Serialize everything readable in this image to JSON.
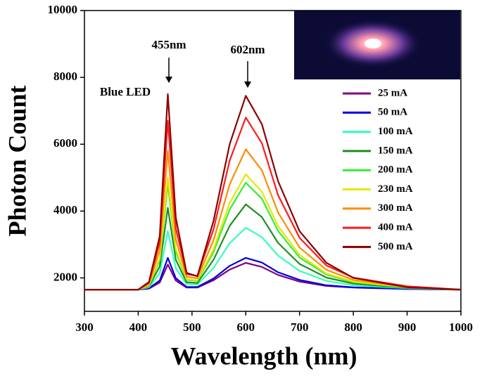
{
  "chart_data": {
    "type": "line",
    "y_label": "Photon Count",
    "x_label": "Wavelength (nm)",
    "annotations": [
      "455nm",
      "602nm",
      "Blue LED"
    ],
    "x": [
      300,
      400,
      420,
      440,
      455,
      470,
      490,
      510,
      540,
      570,
      600,
      630,
      660,
      700,
      750,
      800,
      900,
      1000
    ],
    "xlim": [
      300,
      1000
    ],
    "xticks": [
      300,
      400,
      500,
      600,
      700,
      800,
      900,
      1000
    ],
    "ylim": [
      1000,
      10000
    ],
    "yticks": [
      2000,
      4000,
      6000,
      8000,
      10000
    ],
    "legend": "right",
    "series": [
      {
        "name": "25 mA",
        "color": "#800080",
        "values": [
          1650,
          1650,
          1680,
          1860,
          2400,
          1920,
          1710,
          1710,
          1930,
          2250,
          2450,
          2330,
          2090,
          1890,
          1760,
          1710,
          1670,
          1650
        ]
      },
      {
        "name": "50 mA",
        "color": "#0000dd",
        "values": [
          1650,
          1650,
          1690,
          1920,
          2600,
          1990,
          1730,
          1730,
          1980,
          2360,
          2600,
          2460,
          2170,
          1940,
          1780,
          1720,
          1670,
          1650
        ]
      },
      {
        "name": "100 mA",
        "color": "#33ffbb",
        "values": [
          1650,
          1650,
          1720,
          2140,
          3400,
          2290,
          1810,
          1800,
          2300,
          3040,
          3500,
          3220,
          2670,
          2210,
          1910,
          1780,
          1690,
          1650
        ]
      },
      {
        "name": "150 mA",
        "color": "#1f8f1f",
        "values": [
          1650,
          1650,
          1750,
          2340,
          4100,
          2540,
          1870,
          1850,
          2540,
          3560,
          4200,
          3820,
          3050,
          2420,
          2010,
          1830,
          1700,
          1650
        ]
      },
      {
        "name": "200 mA",
        "color": "#33ee33",
        "values": [
          1650,
          1650,
          1770,
          2530,
          4800,
          2780,
          1940,
          1910,
          2770,
          4050,
          4850,
          4370,
          3410,
          2610,
          2100,
          1870,
          1710,
          1650
        ]
      },
      {
        "name": "230 mA",
        "color": "#e6e600",
        "values": [
          1650,
          1650,
          1780,
          2590,
          5000,
          2860,
          1960,
          1930,
          2860,
          4240,
          5100,
          4580,
          3550,
          2690,
          2130,
          1890,
          1720,
          1650
        ]
      },
      {
        "name": "300 mA",
        "color": "#ff8c00",
        "values": [
          1650,
          1650,
          1820,
          2820,
          5800,
          3150,
          2030,
          1990,
          3120,
          4800,
          5850,
          5220,
          3960,
          2910,
          2240,
          1940,
          1730,
          1650
        ]
      },
      {
        "name": "400 mA",
        "color": "#ff1a1a",
        "values": [
          1650,
          1650,
          1850,
          3060,
          6700,
          3480,
          2110,
          2060,
          3450,
          5510,
          6800,
          6030,
          4480,
          3200,
          2370,
          2010,
          1750,
          1650
        ]
      },
      {
        "name": "500 mA",
        "color": "#8b0000",
        "values": [
          1650,
          1650,
          1880,
          3250,
          7500,
          3800,
          2150,
          2050,
          3700,
          6000,
          7450,
          6600,
          4900,
          3400,
          2450,
          2000,
          1720,
          1650
        ]
      }
    ]
  }
}
